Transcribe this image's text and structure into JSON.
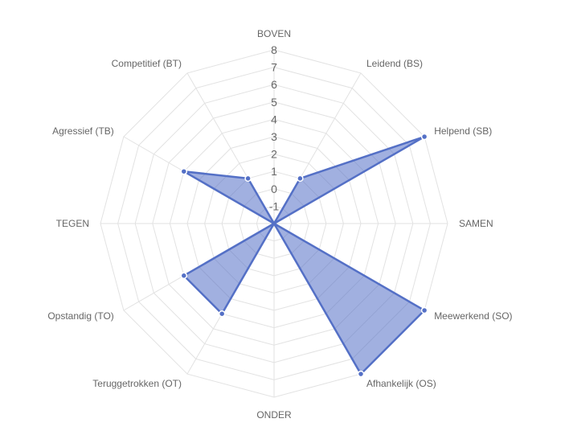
{
  "chart_data": {
    "type": "radar",
    "title": "",
    "categories": [
      "BOVEN",
      "Leidend (BS)",
      "Helpend (SB)",
      "SAMEN",
      "Meewerkend (SO)",
      "Afhankelijk (OS)",
      "ONDER",
      "Teruggetrokken (OT)",
      "Opstandig (TO)",
      "TEGEN",
      "Agressief (TB)",
      "Competitief (BT)"
    ],
    "series": [
      {
        "values": [
          null,
          1,
          8,
          null,
          8,
          8,
          null,
          4,
          4,
          null,
          4,
          1
        ],
        "color": "#5470c6",
        "fill": "rgba(84,112,198,0.55)"
      }
    ],
    "r_min": -2,
    "r_max": 8,
    "ticks": [
      -1,
      0,
      1,
      2,
      3,
      4,
      5,
      6,
      7,
      8
    ],
    "grid": true,
    "legend": "none"
  }
}
